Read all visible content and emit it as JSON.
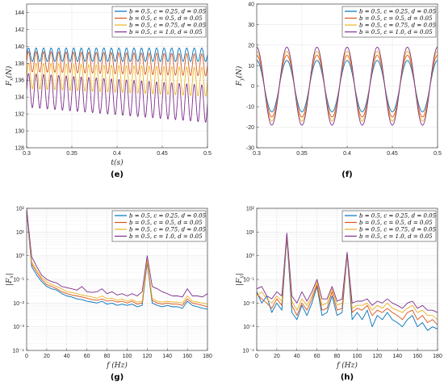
{
  "colors": [
    "#0072BD",
    "#D95319",
    "#EDB120",
    "#7E2F8E"
  ],
  "legend": [
    "b = 0.5,  c = 0.25,  d = 0.05",
    "b = 0.5,  c = 0.5,  d = 0.05",
    "b = 0.5,  c = 0.75,  d = 0.05",
    "b = 0.5,  c = 1.0,  d = 0.05"
  ],
  "chart_data": [
    {
      "id": "e",
      "panel_label": "(e)",
      "type": "line",
      "xlabel": "t(s)",
      "ylabel": "F_x(N)",
      "xlim": [
        0.3,
        0.5
      ],
      "ylim": [
        128,
        145
      ],
      "xticks": [
        0.3,
        0.35,
        0.4,
        0.45,
        0.5
      ],
      "xtick_labels": [
        "0.3",
        "0.35",
        "0.4",
        "0.45",
        "0.5"
      ],
      "yticks": [
        128,
        130,
        132,
        134,
        136,
        138,
        140,
        142,
        144
      ],
      "ytick_labels": [
        "128",
        "130",
        "132",
        "134",
        "136",
        "138",
        "140",
        "142",
        "144"
      ],
      "yscale": "linear",
      "grid": true,
      "legend_position": "top-right",
      "signal": {
        "kind": "sine",
        "frequency_hz": 120
      },
      "series": [
        {
          "name": "b = 0.5, c = 0.25, d = 0.05",
          "mean": [
            139.0,
            139.0
          ],
          "amplitude": [
            0.8,
            0.8
          ]
        },
        {
          "name": "b = 0.5, c = 0.5, d = 0.05",
          "mean": [
            138.2,
            137.8
          ],
          "amplitude": [
            1.2,
            1.3
          ]
        },
        {
          "name": "b = 0.5, c = 0.75, d = 0.05",
          "mean": [
            136.5,
            135.8
          ],
          "amplitude": [
            1.5,
            1.7
          ]
        },
        {
          "name": "b = 0.5, c = 1.0, d = 0.05",
          "mean": [
            134.8,
            133.2
          ],
          "amplitude": [
            2.0,
            2.2
          ]
        }
      ]
    },
    {
      "id": "f",
      "panel_label": "(f)",
      "type": "line",
      "xlabel": "",
      "ylabel": "F_y(N)",
      "xlim": [
        0.3,
        0.5
      ],
      "ylim": [
        -30,
        40
      ],
      "xticks": [
        0.3,
        0.35,
        0.4,
        0.45,
        0.5
      ],
      "xtick_labels": [
        "0.3",
        "0.35",
        "0.4",
        "0.45",
        "0.5"
      ],
      "yticks": [
        -30,
        -20,
        -10,
        0,
        10,
        20,
        30,
        40
      ],
      "ytick_labels": [
        "-30",
        "-20",
        "-10",
        "0",
        "10",
        "20",
        "30",
        "40"
      ],
      "yscale": "linear",
      "grid": true,
      "legend_position": "top-right",
      "signal": {
        "kind": "cosine",
        "frequency_hz": 30
      },
      "series": [
        {
          "name": "b = 0.5, c = 0.25, d = 0.05",
          "mean": [
            0,
            0
          ],
          "amplitude": [
            12.5,
            12.5
          ]
        },
        {
          "name": "b = 0.5, c = 0.5, d = 0.05",
          "mean": [
            0,
            0
          ],
          "amplitude": [
            15,
            15
          ]
        },
        {
          "name": "b = 0.5, c = 0.75, d = 0.05",
          "mean": [
            0,
            0
          ],
          "amplitude": [
            17,
            17
          ]
        },
        {
          "name": "b = 0.5, c = 1.0, d = 0.05",
          "mean": [
            0,
            0
          ],
          "amplitude": [
            19,
            19
          ]
        }
      ]
    },
    {
      "id": "g",
      "panel_label": "(g)",
      "type": "line",
      "xlabel": "f (Hz)",
      "ylabel": "|F_x|",
      "xlim": [
        0,
        180
      ],
      "ylim": [
        0.0001,
        100
      ],
      "xticks": [
        0,
        20,
        40,
        60,
        80,
        100,
        120,
        140,
        160,
        180
      ],
      "xtick_labels": [
        "0",
        "20",
        "40",
        "60",
        "80",
        "100",
        "120",
        "140",
        "160",
        "180"
      ],
      "yticks": [
        0.0001,
        0.001,
        0.01,
        0.1,
        1,
        10,
        100
      ],
      "ytick_labels": [
        "10⁻⁴",
        "10⁻³",
        "10⁻²",
        "10⁻¹",
        "10⁰",
        "10¹",
        "10²"
      ],
      "yscale": "log",
      "grid": true,
      "legend_position": "top-right",
      "x": [
        0,
        5,
        10,
        15,
        20,
        25,
        30,
        35,
        40,
        45,
        50,
        55,
        60,
        65,
        70,
        75,
        80,
        85,
        90,
        95,
        100,
        105,
        110,
        115,
        120,
        125,
        130,
        135,
        140,
        145,
        150,
        155,
        160,
        165,
        170,
        175,
        180
      ],
      "series": [
        {
          "name": "b = 0.5, c = 0.25, d = 0.05",
          "values": [
            80,
            0.35,
            0.15,
            0.08,
            0.05,
            0.04,
            0.035,
            0.025,
            0.02,
            0.018,
            0.015,
            0.014,
            0.012,
            0.011,
            0.01,
            0.012,
            0.009,
            0.01,
            0.008,
            0.009,
            0.008,
            0.009,
            0.007,
            0.008,
            0.5,
            0.01,
            0.008,
            0.007,
            0.008,
            0.007,
            0.007,
            0.006,
            0.012,
            0.008,
            0.007,
            0.006,
            0.0055
          ]
        },
        {
          "name": "b = 0.5, c = 0.5, d = 0.05",
          "values": [
            85,
            0.45,
            0.2,
            0.1,
            0.06,
            0.05,
            0.04,
            0.03,
            0.025,
            0.022,
            0.02,
            0.018,
            0.016,
            0.014,
            0.013,
            0.015,
            0.012,
            0.013,
            0.011,
            0.012,
            0.01,
            0.012,
            0.009,
            0.01,
            0.6,
            0.013,
            0.01,
            0.009,
            0.01,
            0.009,
            0.009,
            0.008,
            0.015,
            0.01,
            0.009,
            0.008,
            0.007
          ]
        },
        {
          "name": "b = 0.5, c = 0.75, d = 0.05",
          "values": [
            88,
            0.55,
            0.25,
            0.12,
            0.08,
            0.06,
            0.05,
            0.04,
            0.03,
            0.028,
            0.025,
            0.022,
            0.02,
            0.018,
            0.016,
            0.02,
            0.015,
            0.016,
            0.013,
            0.015,
            0.012,
            0.014,
            0.011,
            0.012,
            0.7,
            0.016,
            0.012,
            0.011,
            0.012,
            0.011,
            0.011,
            0.01,
            0.02,
            0.012,
            0.011,
            0.01,
            0.009
          ]
        },
        {
          "name": "b = 0.5, c = 1.0, d = 0.05",
          "values": [
            90,
            0.9,
            0.35,
            0.15,
            0.1,
            0.08,
            0.07,
            0.05,
            0.045,
            0.04,
            0.035,
            0.05,
            0.03,
            0.028,
            0.03,
            0.04,
            0.025,
            0.03,
            0.022,
            0.025,
            0.02,
            0.025,
            0.02,
            0.03,
            1.0,
            0.05,
            0.04,
            0.03,
            0.025,
            0.02,
            0.02,
            0.018,
            0.04,
            0.02,
            0.02,
            0.018,
            0.025
          ]
        }
      ]
    },
    {
      "id": "h",
      "panel_label": "(h)",
      "type": "line",
      "xlabel": "f (Hz)",
      "ylabel": "|F_y|",
      "xlim": [
        0,
        180
      ],
      "ylim": [
        0.0001,
        100
      ],
      "xticks": [
        0,
        20,
        40,
        60,
        80,
        100,
        120,
        140,
        160,
        180
      ],
      "xtick_labels": [
        "0",
        "20",
        "40",
        "60",
        "80",
        "100",
        "120",
        "140",
        "160",
        "180"
      ],
      "yticks": [
        0.0001,
        0.001,
        0.01,
        0.1,
        1,
        10,
        100
      ],
      "ytick_labels": [
        "10⁻⁴",
        "10⁻³",
        "10⁻²",
        "10⁻¹",
        "10⁰",
        "10¹",
        "10²"
      ],
      "yscale": "log",
      "grid": true,
      "legend_position": "top-right",
      "x": [
        0,
        5,
        10,
        15,
        20,
        25,
        30,
        35,
        40,
        45,
        50,
        55,
        60,
        65,
        70,
        75,
        80,
        85,
        90,
        95,
        100,
        105,
        110,
        115,
        120,
        125,
        130,
        135,
        140,
        145,
        150,
        155,
        160,
        165,
        170,
        175,
        180
      ],
      "series": [
        {
          "name": "b = 0.5, c = 0.25, d = 0.05",
          "values": [
            0.03,
            0.01,
            0.02,
            0.004,
            0.01,
            0.005,
            6,
            0.004,
            0.002,
            0.008,
            0.003,
            0.01,
            0.05,
            0.003,
            0.004,
            0.02,
            0.003,
            0.004,
            1.1,
            0.002,
            0.004,
            0.002,
            0.005,
            0.001,
            0.003,
            0.002,
            0.004,
            0.002,
            0.0015,
            0.001,
            0.002,
            0.003,
            0.001,
            0.0015,
            0.0007,
            0.001,
            0.0008
          ]
        },
        {
          "name": "b = 0.5, c = 0.5, d = 0.05",
          "values": [
            0.025,
            0.015,
            0.01,
            0.006,
            0.015,
            0.008,
            7,
            0.008,
            0.003,
            0.01,
            0.005,
            0.015,
            0.06,
            0.005,
            0.006,
            0.03,
            0.005,
            0.006,
            1.2,
            0.004,
            0.006,
            0.005,
            0.008,
            0.003,
            0.005,
            0.004,
            0.006,
            0.004,
            0.003,
            0.002,
            0.004,
            0.005,
            0.002,
            0.003,
            0.0015,
            0.002,
            0.0012
          ]
        },
        {
          "name": "b = 0.5, c = 0.75, d = 0.05",
          "values": [
            0.02,
            0.03,
            0.015,
            0.01,
            0.02,
            0.012,
            8,
            0.012,
            0.005,
            0.015,
            0.008,
            0.02,
            0.08,
            0.008,
            0.01,
            0.04,
            0.008,
            0.01,
            1.3,
            0.006,
            0.008,
            0.008,
            0.01,
            0.005,
            0.008,
            0.006,
            0.01,
            0.006,
            0.005,
            0.004,
            0.006,
            0.008,
            0.004,
            0.005,
            0.003,
            0.003,
            0.002
          ]
        },
        {
          "name": "b = 0.5, c = 1.0, d = 0.05",
          "values": [
            0.04,
            0.05,
            0.02,
            0.015,
            0.03,
            0.02,
            9,
            0.02,
            0.01,
            0.03,
            0.012,
            0.03,
            0.1,
            0.015,
            0.015,
            0.05,
            0.012,
            0.015,
            1.4,
            0.01,
            0.012,
            0.012,
            0.015,
            0.008,
            0.012,
            0.01,
            0.015,
            0.01,
            0.008,
            0.006,
            0.01,
            0.012,
            0.006,
            0.008,
            0.005,
            0.005,
            0.004
          ]
        }
      ]
    }
  ]
}
